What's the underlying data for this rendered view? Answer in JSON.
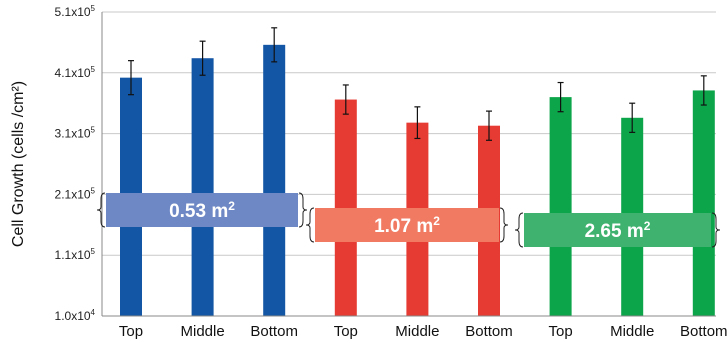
{
  "chart_data": {
    "type": "bar",
    "ylabel": "Cell Growth (cells /cm²)",
    "y_ticks": [
      {
        "mant": "1.0x10",
        "exp": "4",
        "value": 10000
      },
      {
        "mant": "1.1x10",
        "exp": "5",
        "value": 110000
      },
      {
        "mant": "2.1x10",
        "exp": "5",
        "value": 210000
      },
      {
        "mant": "3.1x10",
        "exp": "5",
        "value": 310000
      },
      {
        "mant": "4.1x10",
        "exp": "5",
        "value": 410000
      },
      {
        "mant": "5.1x10",
        "exp": "5",
        "value": 510000
      }
    ],
    "ylim": [
      10000,
      510000
    ],
    "grid": true,
    "groups": [
      {
        "label": "0.53 m",
        "label_sup": "2",
        "color": "#1356a5",
        "label_box_color": "#6e88c5",
        "bars": [
          {
            "category": "Top",
            "value": 402000,
            "error": 28000
          },
          {
            "category": "Middle",
            "value": 434000,
            "error": 28000
          },
          {
            "category": "Bottom",
            "value": 456000,
            "error": 28000
          }
        ]
      },
      {
        "label": "1.07 m",
        "label_sup": "2",
        "color": "#e63b32",
        "label_box_color": "#f07a62",
        "bars": [
          {
            "category": "Top",
            "value": 366000,
            "error": 24000
          },
          {
            "category": "Middle",
            "value": 328000,
            "error": 26000
          },
          {
            "category": "Bottom",
            "value": 323000,
            "error": 24000
          }
        ]
      },
      {
        "label": "2.65 m",
        "label_sup": "2",
        "color": "#0ca54a",
        "label_box_color": "#3fb26f",
        "bars": [
          {
            "category": "Top",
            "value": 370000,
            "error": 24000
          },
          {
            "category": "Middle",
            "value": 336000,
            "error": 24000
          },
          {
            "category": "Bottom",
            "value": 381000,
            "error": 24000
          }
        ]
      }
    ]
  }
}
